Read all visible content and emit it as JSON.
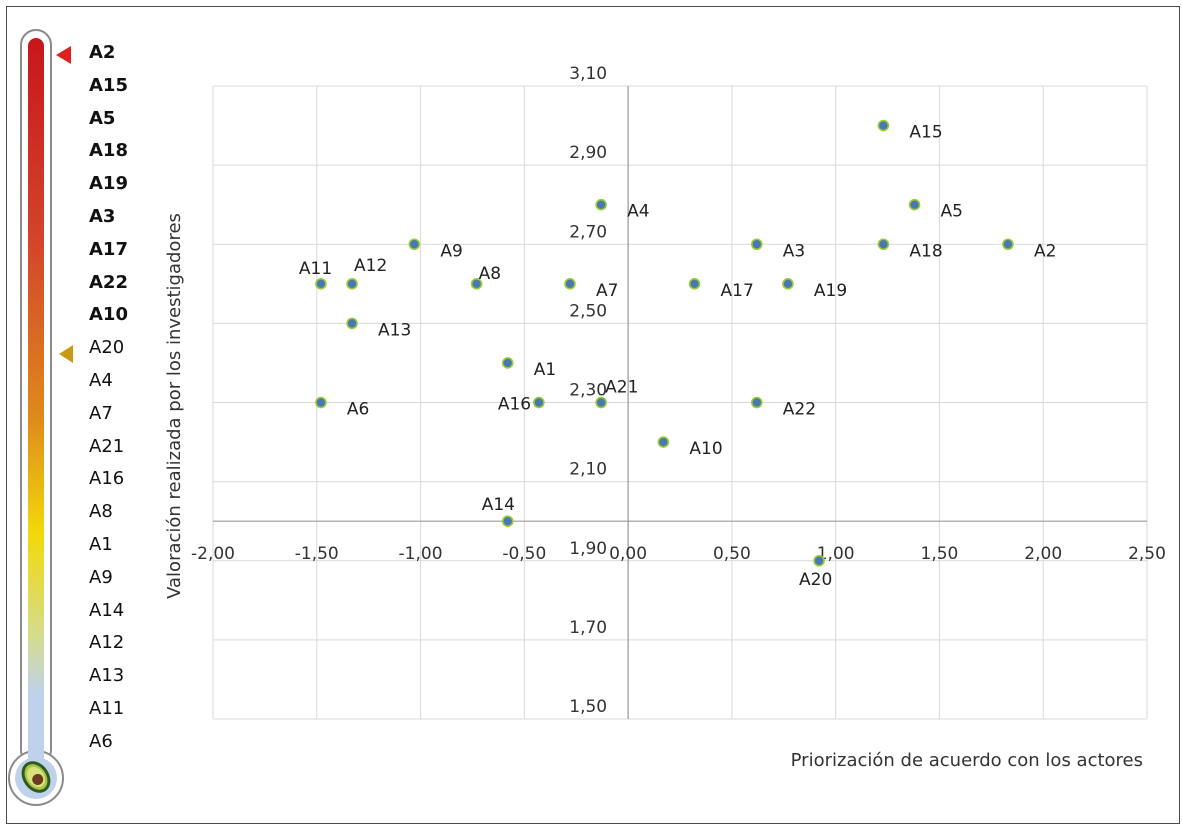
{
  "colors": {
    "point_fill": "#4a78b0",
    "point_stroke": "#9acd32",
    "thermometer_gradient": [
      "#c8161c",
      "#d3452a",
      "#df8a1c",
      "#f2d90a",
      "#d4dc8e",
      "#bed2ec"
    ],
    "marker_top": "#e0201e",
    "marker_mid": "#c89a12"
  },
  "thermometer": {
    "icon": "avocado-icon",
    "ranking": [
      {
        "label": "A2",
        "bold": true
      },
      {
        "label": "A15",
        "bold": true
      },
      {
        "label": "A5",
        "bold": true
      },
      {
        "label": "A18",
        "bold": true
      },
      {
        "label": "A19",
        "bold": true
      },
      {
        "label": "A3",
        "bold": true
      },
      {
        "label": "A17",
        "bold": true
      },
      {
        "label": "A22",
        "bold": true
      },
      {
        "label": "A10",
        "bold": true
      },
      {
        "label": "A20",
        "bold": false
      },
      {
        "label": "A4",
        "bold": false
      },
      {
        "label": "A7",
        "bold": false
      },
      {
        "label": "A21",
        "bold": false
      },
      {
        "label": "A16",
        "bold": false
      },
      {
        "label": "A8",
        "bold": false
      },
      {
        "label": "A1",
        "bold": false
      },
      {
        "label": "A9",
        "bold": false
      },
      {
        "label": "A14",
        "bold": false
      },
      {
        "label": "A12",
        "bold": false
      },
      {
        "label": "A13",
        "bold": false
      },
      {
        "label": "A11",
        "bold": false
      },
      {
        "label": "A6",
        "bold": false
      }
    ]
  },
  "chart_data": {
    "type": "scatter",
    "xlabel": "Priorización de acuerdo con los actores",
    "ylabel": "Valoración realizada por los investigadores",
    "xlim": [
      -2.0,
      2.5
    ],
    "ylim": [
      1.5,
      3.1
    ],
    "x_ticks": [
      -2.0,
      -1.5,
      -1.0,
      -0.5,
      0.0,
      0.5,
      1.0,
      1.5,
      2.0,
      2.5
    ],
    "x_tick_labels": [
      "-2,00",
      "-1,50",
      "-1,00",
      "-0,50",
      "0,00",
      "0,50",
      "1,00",
      "1,50",
      "2,00",
      "2,50"
    ],
    "y_ticks": [
      1.5,
      1.7,
      1.9,
      2.1,
      2.3,
      2.5,
      2.7,
      2.9,
      3.1
    ],
    "y_tick_labels": [
      "1,50",
      "1,70",
      "1,90",
      "2,10",
      "2,30",
      "2,50",
      "2,70",
      "2,90",
      "3,10"
    ],
    "x_axis_crosses_y": 2.0,
    "grid": true,
    "points": [
      {
        "label": "A1",
        "x": -0.58,
        "y": 2.4
      },
      {
        "label": "A2",
        "x": 1.83,
        "y": 2.7
      },
      {
        "label": "A3",
        "x": 0.62,
        "y": 2.7
      },
      {
        "label": "A4",
        "x": -0.13,
        "y": 2.8
      },
      {
        "label": "A5",
        "x": 1.38,
        "y": 2.8
      },
      {
        "label": "A6",
        "x": -1.48,
        "y": 2.3
      },
      {
        "label": "A7",
        "x": -0.28,
        "y": 2.6
      },
      {
        "label": "A8",
        "x": -0.73,
        "y": 2.6
      },
      {
        "label": "A9",
        "x": -1.03,
        "y": 2.7
      },
      {
        "label": "A10",
        "x": 0.17,
        "y": 2.2
      },
      {
        "label": "A11",
        "x": -1.48,
        "y": 2.6
      },
      {
        "label": "A12",
        "x": -1.33,
        "y": 2.6
      },
      {
        "label": "A13",
        "x": -1.33,
        "y": 2.5
      },
      {
        "label": "A14",
        "x": -0.58,
        "y": 2.0
      },
      {
        "label": "A15",
        "x": 1.23,
        "y": 3.0
      },
      {
        "label": "A16",
        "x": -0.43,
        "y": 2.3
      },
      {
        "label": "A17",
        "x": 0.32,
        "y": 2.6
      },
      {
        "label": "A18",
        "x": 1.23,
        "y": 2.7
      },
      {
        "label": "A19",
        "x": 0.77,
        "y": 2.6
      },
      {
        "label": "A20",
        "x": 0.92,
        "y": 1.9
      },
      {
        "label": "A21",
        "x": -0.13,
        "y": 2.3
      },
      {
        "label": "A22",
        "x": 0.62,
        "y": 2.3
      }
    ]
  }
}
